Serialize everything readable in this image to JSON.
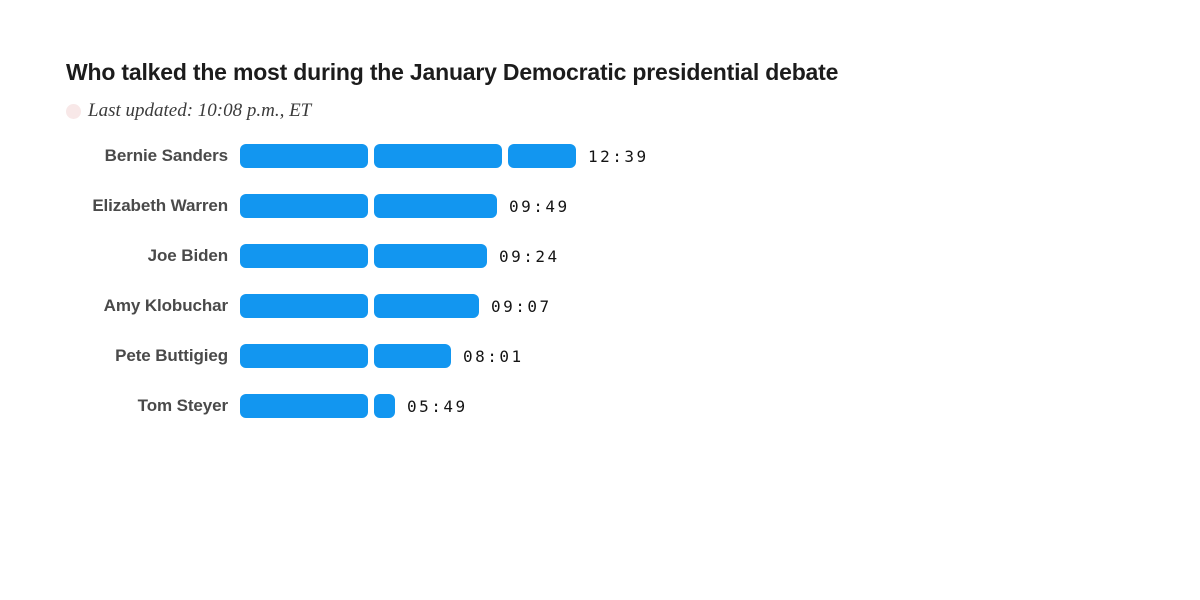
{
  "header": {
    "title": "Who talked the most during the January Democratic presidential debate",
    "last_updated": "Last updated: 10:08 p.m., ET",
    "live_dot_color": "#f8e8e8"
  },
  "colors": {
    "bar_blue": "#1296f0",
    "title_text": "#1c1c1c",
    "label_text": "#4a4a4a",
    "time_text": "#141414",
    "background": "#ffffff"
  },
  "chart_data": {
    "type": "bar",
    "orientation": "horizontal",
    "title": "Who talked the most during the January Democratic presidential debate",
    "subtitle": "Last updated: 10:08 p.m., ET",
    "xlabel": "",
    "ylabel": "",
    "unit": "mm:ss speaking time",
    "grid": false,
    "legend": "none",
    "segment_interval_seconds": 300,
    "categories": [
      "Bernie Sanders",
      "Elizabeth Warren",
      "Joe Biden",
      "Amy Klobuchar",
      "Pete Buttigieg",
      "Tom Steyer"
    ],
    "values": [
      "12:39",
      "09:49",
      "09:24",
      "09:07",
      "08:01",
      "05:49"
    ],
    "values_seconds": [
      759,
      589,
      564,
      547,
      481,
      349
    ]
  }
}
